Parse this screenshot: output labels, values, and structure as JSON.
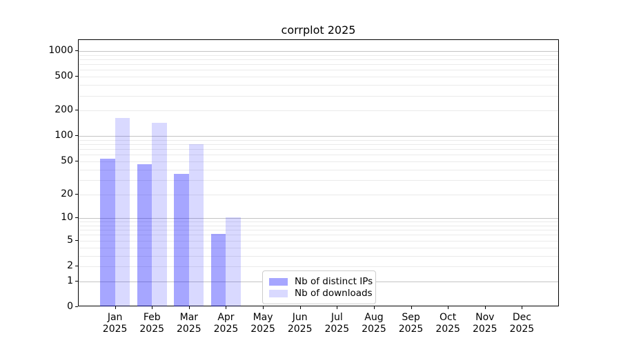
{
  "figure": {
    "background": "#ffffff"
  },
  "chart_data": {
    "type": "bar",
    "title": "corrplot 2025",
    "scale": "log1p",
    "categories": [
      "Jan 2025",
      "Feb 2025",
      "Mar 2025",
      "Apr 2025",
      "May 2025",
      "Jun 2025",
      "Jul 2025",
      "Aug 2025",
      "Sep 2025",
      "Oct 2025",
      "Nov 2025",
      "Dec 2025"
    ],
    "series": [
      {
        "name": "Nb of distinct IPs",
        "color": "rgba(0,0,255,0.35)",
        "values": [
          53,
          45,
          35,
          6,
          null,
          null,
          null,
          null,
          null,
          null,
          null,
          null
        ]
      },
      {
        "name": "Nb of downloads",
        "color": "rgba(0,0,255,0.15)",
        "values": [
          160,
          140,
          78,
          10,
          null,
          null,
          null,
          null,
          null,
          null,
          null,
          null
        ]
      }
    ],
    "yticks": [
      0,
      1,
      2,
      5,
      10,
      20,
      50,
      100,
      200,
      500,
      1000
    ],
    "ylim": [
      0,
      1347
    ],
    "xlabel": "",
    "ylabel": "",
    "grid": "horizontal, major and minor, log decades",
    "legend_position": "bottom-center inside plot"
  },
  "colors": {
    "grid_major": "#c3c3c3",
    "grid_minor": "#eaeaea",
    "axis": "#000000",
    "legend_border": "#cccccc"
  }
}
